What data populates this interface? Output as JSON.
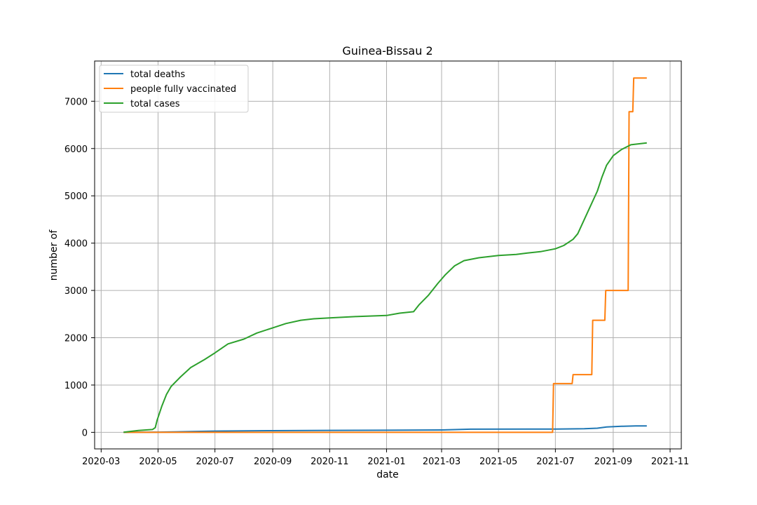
{
  "chart_data": {
    "type": "line",
    "title": "Guinea-Bissau 2",
    "xlabel": "date",
    "ylabel": "number of",
    "grid": true,
    "legend_position": "upper-left",
    "xlim": [
      "2020-02-23",
      "2021-11-13"
    ],
    "ylim": [
      -350,
      7850
    ],
    "x_ticks": [
      "2020-03",
      "2020-05",
      "2020-07",
      "2020-09",
      "2020-11",
      "2021-01",
      "2021-03",
      "2021-05",
      "2021-07",
      "2021-09",
      "2021-11"
    ],
    "y_ticks": [
      0,
      1000,
      2000,
      3000,
      4000,
      5000,
      6000,
      7000
    ],
    "series": [
      {
        "name": "total deaths",
        "color": "#1f77b4",
        "points": [
          [
            "2020-03-25",
            0
          ],
          [
            "2020-04-10",
            1
          ],
          [
            "2020-05-01",
            5
          ],
          [
            "2020-06-01",
            15
          ],
          [
            "2020-07-01",
            26
          ],
          [
            "2020-09-01",
            35
          ],
          [
            "2020-11-01",
            41
          ],
          [
            "2021-01-01",
            45
          ],
          [
            "2021-03-01",
            50
          ],
          [
            "2021-04-01",
            66
          ],
          [
            "2021-06-01",
            68
          ],
          [
            "2021-07-01",
            69
          ],
          [
            "2021-08-01",
            76
          ],
          [
            "2021-08-15",
            88
          ],
          [
            "2021-08-25",
            113
          ],
          [
            "2021-09-10",
            128
          ],
          [
            "2021-09-25",
            136
          ],
          [
            "2021-10-07",
            136
          ]
        ]
      },
      {
        "name": "people fully vaccinated",
        "color": "#ff7f0e",
        "points": [
          [
            "2020-03-25",
            0
          ],
          [
            "2021-06-28",
            0
          ],
          [
            "2021-06-29",
            1030
          ],
          [
            "2021-07-19",
            1030
          ],
          [
            "2021-07-20",
            1220
          ],
          [
            "2021-08-09",
            1220
          ],
          [
            "2021-08-10",
            2370
          ],
          [
            "2021-08-23",
            2370
          ],
          [
            "2021-08-24",
            3000
          ],
          [
            "2021-09-17",
            3000
          ],
          [
            "2021-09-18",
            6780
          ],
          [
            "2021-09-22",
            6780
          ],
          [
            "2021-09-23",
            7490
          ],
          [
            "2021-10-07",
            7490
          ]
        ]
      },
      {
        "name": "total cases",
        "color": "#2ca02c",
        "points": [
          [
            "2020-03-25",
            2
          ],
          [
            "2020-04-10",
            40
          ],
          [
            "2020-04-25",
            60
          ],
          [
            "2020-04-28",
            100
          ],
          [
            "2020-04-30",
            260
          ],
          [
            "2020-05-05",
            550
          ],
          [
            "2020-05-10",
            800
          ],
          [
            "2020-05-15",
            970
          ],
          [
            "2020-05-25",
            1170
          ],
          [
            "2020-06-05",
            1370
          ],
          [
            "2020-06-20",
            1540
          ],
          [
            "2020-07-01",
            1680
          ],
          [
            "2020-07-15",
            1870
          ],
          [
            "2020-08-01",
            1970
          ],
          [
            "2020-08-15",
            2100
          ],
          [
            "2020-09-01",
            2210
          ],
          [
            "2020-09-15",
            2300
          ],
          [
            "2020-10-01",
            2370
          ],
          [
            "2020-10-15",
            2400
          ],
          [
            "2020-11-01",
            2420
          ],
          [
            "2020-12-01",
            2450
          ],
          [
            "2021-01-01",
            2470
          ],
          [
            "2021-01-15",
            2520
          ],
          [
            "2021-01-30",
            2550
          ],
          [
            "2021-02-05",
            2700
          ],
          [
            "2021-02-15",
            2900
          ],
          [
            "2021-02-25",
            3150
          ],
          [
            "2021-03-05",
            3330
          ],
          [
            "2021-03-15",
            3520
          ],
          [
            "2021-03-25",
            3630
          ],
          [
            "2021-04-10",
            3690
          ],
          [
            "2021-05-01",
            3740
          ],
          [
            "2021-05-20",
            3760
          ],
          [
            "2021-06-01",
            3790
          ],
          [
            "2021-06-15",
            3820
          ],
          [
            "2021-07-01",
            3880
          ],
          [
            "2021-07-10",
            3950
          ],
          [
            "2021-07-20",
            4080
          ],
          [
            "2021-07-25",
            4200
          ],
          [
            "2021-08-01",
            4500
          ],
          [
            "2021-08-08",
            4800
          ],
          [
            "2021-08-15",
            5100
          ],
          [
            "2021-08-20",
            5400
          ],
          [
            "2021-08-25",
            5650
          ],
          [
            "2021-09-01",
            5850
          ],
          [
            "2021-09-10",
            5980
          ],
          [
            "2021-09-20",
            6080
          ],
          [
            "2021-10-07",
            6120
          ]
        ]
      }
    ]
  }
}
